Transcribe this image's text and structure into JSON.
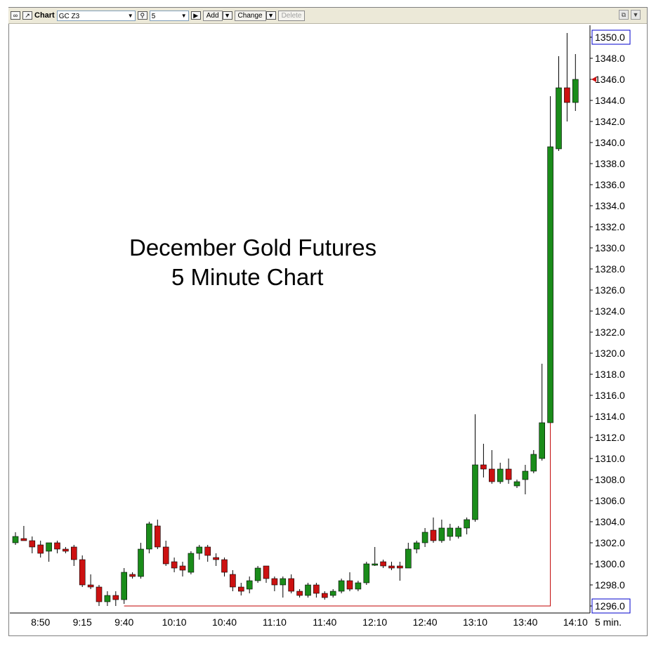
{
  "toolbar": {
    "chart_label": "Chart",
    "symbol": "GC Z3",
    "interval": "5",
    "add_label": "Add",
    "change_label": "Change",
    "delete_label": "Delete"
  },
  "annotation": {
    "line1": "December Gold Futures",
    "line2": "5 Minute Chart"
  },
  "colors": {
    "up": "#1a8c1a",
    "down": "#cc1111",
    "wick": "#000000",
    "marker_line": "#c00000",
    "price_box_border": "#0000cc"
  },
  "icons": [
    "link-icon",
    "chart-icon",
    "search-icon",
    "play-icon",
    "restore-icon",
    "menu-arrow-icon"
  ],
  "chart_data": {
    "type": "candlestick",
    "title": "December Gold Futures 5 Minute Chart",
    "interval_label": "5 min.",
    "ylim": [
      1295,
      1352
    ],
    "y_ticks": [
      1296.0,
      1298.0,
      1300.0,
      1302.0,
      1304.0,
      1306.0,
      1308.0,
      1310.0,
      1312.0,
      1314.0,
      1316.0,
      1318.0,
      1320.0,
      1322.0,
      1324.0,
      1326.0,
      1328.0,
      1330.0,
      1332.0,
      1334.0,
      1336.0,
      1338.0,
      1340.0,
      1342.0,
      1344.0,
      1346.0,
      1348.0,
      1350.0
    ],
    "y_tick_labels": [
      "1296.0",
      "1298.0",
      "1300.0",
      "1302.0",
      "1304.0",
      "1306.0",
      "1308.0",
      "1310.0",
      "1312.0",
      "1314.0",
      "1316.0",
      "1318.0",
      "1320.0",
      "1322.0",
      "1324.0",
      "1326.0",
      "1328.0",
      "1330.0",
      "1332.0",
      "1334.0",
      "1336.0",
      "1338.0",
      "1340.0",
      "1342.0",
      "1344.0",
      "1346.0",
      "1348.0",
      "1350.0"
    ],
    "boxed_ticks": [
      "1296.0",
      "1350.0"
    ],
    "last_price": 1346.0,
    "x_tick_labels": [
      "8:50",
      "9:15",
      "9:40",
      "10:10",
      "10:40",
      "11:10",
      "11:40",
      "12:10",
      "12:40",
      "13:10",
      "13:40",
      "14:10"
    ],
    "x_tick_bar_index": [
      3,
      8,
      13,
      19,
      25,
      31,
      37,
      43,
      49,
      55,
      61,
      67
    ],
    "grid": false,
    "candles": [
      {
        "o": 1302.0,
        "h": 1303.0,
        "l": 1301.8,
        "c": 1302.6
      },
      {
        "o": 1302.4,
        "h": 1303.6,
        "l": 1302.2,
        "c": 1302.2
      },
      {
        "o": 1302.2,
        "h": 1302.6,
        "l": 1301.0,
        "c": 1301.6
      },
      {
        "o": 1301.8,
        "h": 1302.2,
        "l": 1300.6,
        "c": 1301.0
      },
      {
        "o": 1301.2,
        "h": 1302.0,
        "l": 1300.2,
        "c": 1302.0
      },
      {
        "o": 1302.0,
        "h": 1302.2,
        "l": 1301.0,
        "c": 1301.4
      },
      {
        "o": 1301.4,
        "h": 1301.6,
        "l": 1301.0,
        "c": 1301.2
      },
      {
        "o": 1301.6,
        "h": 1301.8,
        "l": 1299.8,
        "c": 1300.4
      },
      {
        "o": 1300.4,
        "h": 1300.8,
        "l": 1297.8,
        "c": 1298.0
      },
      {
        "o": 1298.0,
        "h": 1299.0,
        "l": 1297.6,
        "c": 1297.8
      },
      {
        "o": 1297.8,
        "h": 1298.0,
        "l": 1296.0,
        "c": 1296.4
      },
      {
        "o": 1296.4,
        "h": 1297.4,
        "l": 1296.0,
        "c": 1297.0
      },
      {
        "o": 1297.0,
        "h": 1297.4,
        "l": 1296.0,
        "c": 1296.6
      },
      {
        "o": 1296.6,
        "h": 1299.6,
        "l": 1296.2,
        "c": 1299.2
      },
      {
        "o": 1299.0,
        "h": 1299.2,
        "l": 1298.6,
        "c": 1298.8
      },
      {
        "o": 1298.8,
        "h": 1302.0,
        "l": 1298.6,
        "c": 1301.4
      },
      {
        "o": 1301.4,
        "h": 1304.0,
        "l": 1301.0,
        "c": 1303.8
      },
      {
        "o": 1303.6,
        "h": 1304.2,
        "l": 1301.4,
        "c": 1301.6
      },
      {
        "o": 1301.6,
        "h": 1302.2,
        "l": 1299.8,
        "c": 1300.0
      },
      {
        "o": 1300.2,
        "h": 1300.6,
        "l": 1299.2,
        "c": 1299.6
      },
      {
        "o": 1299.8,
        "h": 1300.2,
        "l": 1298.8,
        "c": 1299.4
      },
      {
        "o": 1299.2,
        "h": 1301.2,
        "l": 1299.0,
        "c": 1301.0
      },
      {
        "o": 1301.0,
        "h": 1301.8,
        "l": 1300.4,
        "c": 1301.6
      },
      {
        "o": 1301.6,
        "h": 1301.8,
        "l": 1300.2,
        "c": 1300.8
      },
      {
        "o": 1300.6,
        "h": 1301.0,
        "l": 1299.8,
        "c": 1300.4
      },
      {
        "o": 1300.4,
        "h": 1300.6,
        "l": 1298.8,
        "c": 1299.2
      },
      {
        "o": 1299.0,
        "h": 1299.4,
        "l": 1297.4,
        "c": 1297.8
      },
      {
        "o": 1297.8,
        "h": 1298.2,
        "l": 1297.0,
        "c": 1297.4
      },
      {
        "o": 1297.6,
        "h": 1298.8,
        "l": 1297.2,
        "c": 1298.4
      },
      {
        "o": 1298.4,
        "h": 1299.8,
        "l": 1298.2,
        "c": 1299.6
      },
      {
        "o": 1299.8,
        "h": 1299.8,
        "l": 1298.2,
        "c": 1298.6
      },
      {
        "o": 1298.6,
        "h": 1298.8,
        "l": 1297.4,
        "c": 1298.0
      },
      {
        "o": 1298.0,
        "h": 1298.8,
        "l": 1296.8,
        "c": 1298.6
      },
      {
        "o": 1298.6,
        "h": 1299.0,
        "l": 1297.2,
        "c": 1297.4
      },
      {
        "o": 1297.4,
        "h": 1297.6,
        "l": 1296.8,
        "c": 1297.0
      },
      {
        "o": 1297.0,
        "h": 1298.2,
        "l": 1296.8,
        "c": 1298.0
      },
      {
        "o": 1298.0,
        "h": 1298.2,
        "l": 1296.8,
        "c": 1297.2
      },
      {
        "o": 1297.2,
        "h": 1297.4,
        "l": 1296.6,
        "c": 1296.8
      },
      {
        "o": 1297.0,
        "h": 1297.6,
        "l": 1296.8,
        "c": 1297.4
      },
      {
        "o": 1297.4,
        "h": 1298.6,
        "l": 1297.2,
        "c": 1298.4
      },
      {
        "o": 1298.4,
        "h": 1299.2,
        "l": 1297.4,
        "c": 1297.6
      },
      {
        "o": 1297.6,
        "h": 1298.4,
        "l": 1297.4,
        "c": 1298.2
      },
      {
        "o": 1298.2,
        "h": 1300.2,
        "l": 1298.0,
        "c": 1300.0
      },
      {
        "o": 1300.0,
        "h": 1301.6,
        "l": 1299.8,
        "c": 1300.0
      },
      {
        "o": 1300.2,
        "h": 1300.4,
        "l": 1299.6,
        "c": 1299.8
      },
      {
        "o": 1299.8,
        "h": 1300.2,
        "l": 1299.4,
        "c": 1299.6
      },
      {
        "o": 1299.8,
        "h": 1300.2,
        "l": 1298.4,
        "c": 1299.6
      },
      {
        "o": 1299.6,
        "h": 1302.0,
        "l": 1299.6,
        "c": 1301.4
      },
      {
        "o": 1301.4,
        "h": 1302.2,
        "l": 1301.0,
        "c": 1302.0
      },
      {
        "o": 1302.0,
        "h": 1303.4,
        "l": 1301.6,
        "c": 1303.0
      },
      {
        "o": 1303.2,
        "h": 1304.4,
        "l": 1302.0,
        "c": 1302.2
      },
      {
        "o": 1302.2,
        "h": 1304.2,
        "l": 1302.0,
        "c": 1303.4
      },
      {
        "o": 1302.6,
        "h": 1303.8,
        "l": 1302.2,
        "c": 1303.4
      },
      {
        "o": 1302.6,
        "h": 1303.6,
        "l": 1302.4,
        "c": 1303.4
      },
      {
        "o": 1303.4,
        "h": 1304.4,
        "l": 1302.8,
        "c": 1304.2
      },
      {
        "o": 1304.2,
        "h": 1314.2,
        "l": 1304.0,
        "c": 1309.4
      },
      {
        "o": 1309.4,
        "h": 1311.4,
        "l": 1308.2,
        "c": 1309.0
      },
      {
        "o": 1309.0,
        "h": 1310.8,
        "l": 1307.6,
        "c": 1307.8
      },
      {
        "o": 1307.8,
        "h": 1309.6,
        "l": 1307.6,
        "c": 1309.0
      },
      {
        "o": 1309.0,
        "h": 1310.0,
        "l": 1307.6,
        "c": 1308.0
      },
      {
        "o": 1307.4,
        "h": 1308.0,
        "l": 1307.2,
        "c": 1307.8
      },
      {
        "o": 1308.0,
        "h": 1309.4,
        "l": 1306.6,
        "c": 1308.8
      },
      {
        "o": 1308.8,
        "h": 1310.8,
        "l": 1308.6,
        "c": 1310.4
      },
      {
        "o": 1310.0,
        "h": 1319.0,
        "l": 1309.8,
        "c": 1313.4
      },
      {
        "o": 1313.4,
        "h": 1344.4,
        "l": 1313.4,
        "c": 1339.6
      },
      {
        "o": 1339.4,
        "h": 1348.2,
        "l": 1339.2,
        "c": 1345.2
      },
      {
        "o": 1345.2,
        "h": 1350.4,
        "l": 1342.0,
        "c": 1343.8
      },
      {
        "o": 1343.8,
        "h": 1348.4,
        "l": 1343.0,
        "c": 1346.0
      }
    ],
    "support_level": 1296.0
  }
}
